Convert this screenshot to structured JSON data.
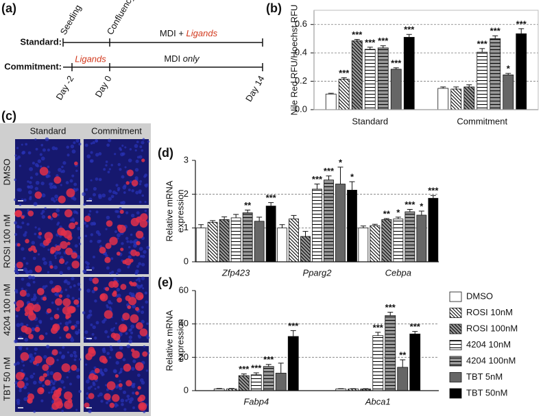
{
  "panel_labels": [
    "(a)",
    "(b)",
    "(c)",
    "(d)",
    "(e)"
  ],
  "timeline": {
    "rows": [
      "Standard:",
      "Commitment:"
    ],
    "events": [
      "Seeding",
      "Confluency"
    ],
    "standard_phase": [
      "MDI + ",
      "Ligands"
    ],
    "commitment_phases": [
      "Ligands",
      "MDI ",
      "only"
    ],
    "days": [
      "Day -2",
      "Day 0",
      "Day 14"
    ]
  },
  "micrographs": {
    "columns": [
      "Standard",
      "Commitment"
    ],
    "rows": [
      "DMSO",
      "ROSI 100 nM",
      "4204 100 nM",
      "TBT 50 nM"
    ]
  },
  "chart_data": [
    {
      "type": "bar",
      "ylabel": [
        "Nile Red RFU/Hoechst RFU"
      ],
      "categories": [
        "Standard",
        "Commitment"
      ],
      "ylim": [
        0,
        0.7
      ],
      "yticks": [
        {
          "value": 0,
          "label": "0.0"
        },
        0.2,
        0.4,
        0.6
      ],
      "grid": true,
      "series": [
        {
          "color": "#ffffff",
          "hatch": null,
          "values": [
            0.11,
            0.15
          ],
          "errors": [
            0.005,
            0.01
          ],
          "annotations": [
            null,
            null
          ]
        },
        {
          "color": "#ffffff",
          "hatch": "diagonal",
          "values": [
            0.215,
            0.145
          ],
          "errors": [
            0.01,
            0.015
          ],
          "annotations": [
            "***",
            null
          ]
        },
        {
          "color": "#999999",
          "hatch": "diagonal",
          "values": [
            0.485,
            0.16
          ],
          "errors": [
            0.01,
            0.015
          ],
          "annotations": [
            "***",
            null
          ]
        },
        {
          "color": "#ffffff",
          "hatch": "horizontal",
          "values": [
            0.425,
            0.405
          ],
          "errors": [
            0.015,
            0.025
          ],
          "annotations": [
            "***",
            "***"
          ]
        },
        {
          "color": "#999999",
          "hatch": "horizontal",
          "values": [
            0.435,
            0.5
          ],
          "errors": [
            0.015,
            0.02
          ],
          "annotations": [
            "***",
            "***"
          ]
        },
        {
          "color": "#666666",
          "hatch": null,
          "values": [
            0.285,
            0.245
          ],
          "errors": [
            0.01,
            0.01
          ],
          "annotations": [
            "***",
            "*"
          ]
        },
        {
          "color": "#000000",
          "hatch": null,
          "values": [
            0.51,
            0.535
          ],
          "errors": [
            0.02,
            0.035
          ],
          "annotations": [
            "***",
            "***"
          ]
        }
      ]
    },
    {
      "type": "bar",
      "ylabel": [
        "Relative mRNA",
        "expression"
      ],
      "categories": [
        "Zfp423",
        "Pparg2",
        "Cebpa"
      ],
      "ylim": [
        0,
        3
      ],
      "yticks": [
        0,
        1,
        2,
        3
      ],
      "grid": true,
      "series": [
        {
          "color": "#ffffff",
          "hatch": null,
          "values": [
            1.0,
            1.0,
            1.0
          ],
          "errors": [
            0.1,
            0.1,
            0.06
          ],
          "annotations": [
            null,
            null,
            null
          ]
        },
        {
          "color": "#ffffff",
          "hatch": "diagonal",
          "values": [
            1.17,
            1.27,
            1.07
          ],
          "errors": [
            0.05,
            0.1,
            0.04
          ],
          "annotations": [
            null,
            null,
            null
          ]
        },
        {
          "color": "#999999",
          "hatch": "diagonal",
          "values": [
            1.25,
            0.75,
            1.25
          ],
          "errors": [
            0.08,
            0.15,
            0.03
          ],
          "annotations": [
            null,
            null,
            "**"
          ]
        },
        {
          "color": "#ffffff",
          "hatch": "horizontal",
          "values": [
            1.3,
            2.15,
            1.27
          ],
          "errors": [
            0.1,
            0.15,
            0.05
          ],
          "annotations": [
            null,
            "***",
            "*"
          ]
        },
        {
          "color": "#999999",
          "hatch": "horizontal",
          "values": [
            1.45,
            2.42,
            1.48
          ],
          "errors": [
            0.08,
            0.12,
            0.07
          ],
          "annotations": [
            "**",
            "***",
            "***"
          ]
        },
        {
          "color": "#666666",
          "hatch": null,
          "values": [
            1.2,
            2.3,
            1.38
          ],
          "errors": [
            0.12,
            0.5,
            0.12
          ],
          "annotations": [
            null,
            "*",
            "*"
          ]
        },
        {
          "color": "#000000",
          "hatch": null,
          "values": [
            1.65,
            2.12,
            1.88
          ],
          "errors": [
            0.1,
            0.25,
            0.08
          ],
          "annotations": [
            "***",
            "*",
            "***"
          ]
        }
      ]
    },
    {
      "type": "bar",
      "ylabel": [
        "Relative mRNA",
        "expression"
      ],
      "categories": [
        "Fabp4",
        "Abca1"
      ],
      "ylim": [
        0,
        60
      ],
      "yticks": [
        0,
        20,
        40,
        60
      ],
      "grid": true,
      "series": [
        {
          "name": "DMSO",
          "color": "#ffffff",
          "hatch": null,
          "values": [
            1,
            1
          ],
          "errors": [
            0.3,
            0.2
          ],
          "annotations": [
            null,
            null
          ]
        },
        {
          "name": "ROSI 10nM",
          "color": "#ffffff",
          "hatch": "diagonal",
          "values": [
            1,
            1
          ],
          "errors": [
            0.3,
            0.2
          ],
          "annotations": [
            null,
            null
          ]
        },
        {
          "name": "ROSI 100nM",
          "color": "#999999",
          "hatch": "diagonal",
          "values": [
            9,
            1
          ],
          "errors": [
            1,
            0.2
          ],
          "annotations": [
            "***",
            null
          ]
        },
        {
          "name": "4204 10nM",
          "color": "#ffffff",
          "hatch": "horizontal",
          "values": [
            9.5,
            33
          ],
          "errors": [
            1.2,
            2
          ],
          "annotations": [
            "***",
            "***"
          ]
        },
        {
          "name": "4204 100nM",
          "color": "#999999",
          "hatch": "horizontal",
          "values": [
            14.5,
            45
          ],
          "errors": [
            1.2,
            2
          ],
          "annotations": [
            "***",
            "***"
          ]
        },
        {
          "name": "TBT 5nM",
          "color": "#666666",
          "hatch": null,
          "values": [
            10.5,
            14
          ],
          "errors": [
            6,
            4.5
          ],
          "annotations": [
            null,
            "**"
          ]
        },
        {
          "name": "TBT 50nM",
          "color": "#000000",
          "hatch": null,
          "values": [
            32.5,
            34
          ],
          "errors": [
            3.5,
            1.5
          ],
          "annotations": [
            "***",
            "***"
          ]
        }
      ]
    }
  ]
}
